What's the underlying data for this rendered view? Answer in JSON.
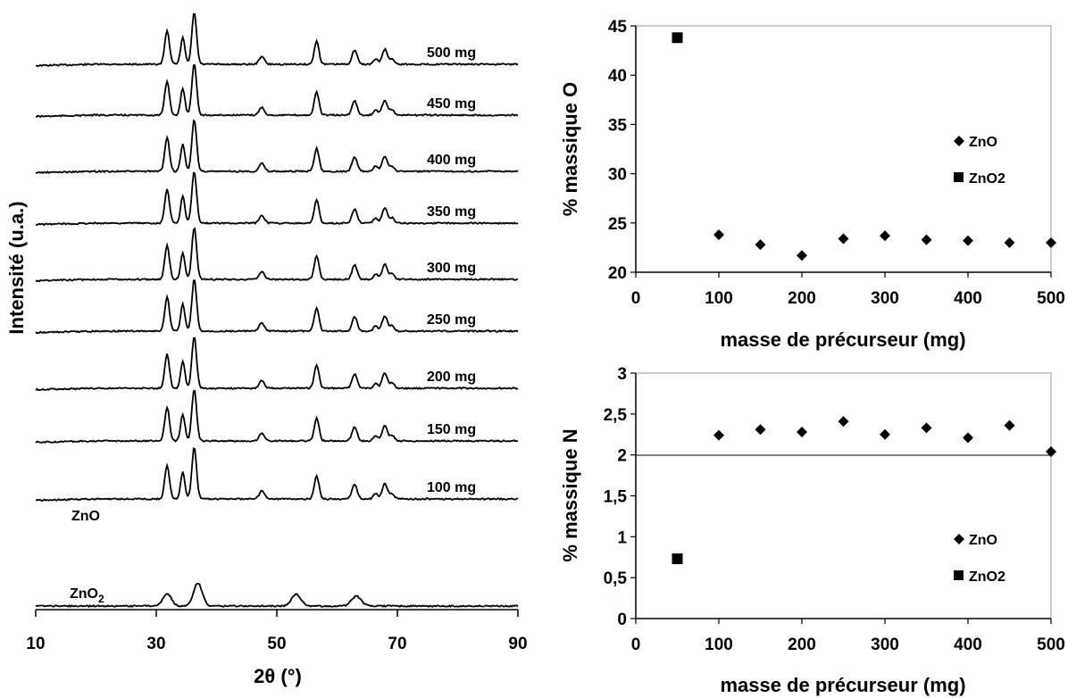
{
  "chart_data": [
    {
      "type": "line",
      "xlabel": "2θ (°)",
      "ylabel": "Intensité (u.a.)",
      "xlim": [
        10,
        90
      ],
      "xticks": [
        "10",
        "30",
        "50",
        "70",
        "90"
      ],
      "sample_group_label": "ZnO",
      "zno2_label": {
        "base": "ZnO",
        "subscript": "2"
      },
      "zno_peaks": [
        31.8,
        34.4,
        36.3,
        47.5,
        56.6,
        62.9,
        66.4,
        67.9,
        69.1
      ],
      "zno2_peaks": [
        31.8,
        36.9,
        53.2,
        63.2
      ],
      "series": [
        {
          "name": "500 mg"
        },
        {
          "name": "450 mg"
        },
        {
          "name": "400 mg"
        },
        {
          "name": "350 mg"
        },
        {
          "name": "300 mg"
        },
        {
          "name": "250 mg"
        },
        {
          "name": "200 mg"
        },
        {
          "name": "150 mg"
        },
        {
          "name": "100 mg"
        },
        {
          "name": "ZnO2"
        }
      ]
    },
    {
      "type": "scatter",
      "xlabel": "masse de précurseur (mg)",
      "ylabel": "% massique O",
      "xlim": [
        0,
        500
      ],
      "ylim": [
        20,
        45
      ],
      "xticks": [
        "0",
        "100",
        "200",
        "300",
        "400",
        "500"
      ],
      "yticks": [
        "20",
        "25",
        "30",
        "35",
        "40",
        "45"
      ],
      "legend_position": "right",
      "series": [
        {
          "name": "ZnO",
          "x": [
            100,
            150,
            200,
            250,
            300,
            350,
            400,
            450,
            500
          ],
          "y": [
            23.8,
            22.8,
            21.7,
            23.4,
            23.7,
            23.3,
            23.2,
            23.0,
            23.0
          ]
        },
        {
          "name": "ZnO2",
          "x": [
            50
          ],
          "y": [
            43.8
          ]
        }
      ]
    },
    {
      "type": "scatter",
      "xlabel": "masse de précurseur (mg)",
      "ylabel": "% massique N",
      "xlim": [
        0,
        500
      ],
      "ylim": [
        0,
        3
      ],
      "xticks": [
        "0",
        "100",
        "200",
        "300",
        "400",
        "500"
      ],
      "yticks": [
        "0",
        "0,5",
        "1",
        "1,5",
        "2",
        "2,5",
        "3"
      ],
      "reference_line_y": 2,
      "legend_position": "bottom-right",
      "series": [
        {
          "name": "ZnO",
          "x": [
            100,
            150,
            200,
            250,
            300,
            350,
            400,
            450,
            500
          ],
          "y": [
            2.24,
            2.31,
            2.28,
            2.41,
            2.25,
            2.33,
            2.21,
            2.36,
            2.04
          ]
        },
        {
          "name": "ZnO2",
          "x": [
            50
          ],
          "y": [
            0.73
          ]
        }
      ]
    }
  ]
}
